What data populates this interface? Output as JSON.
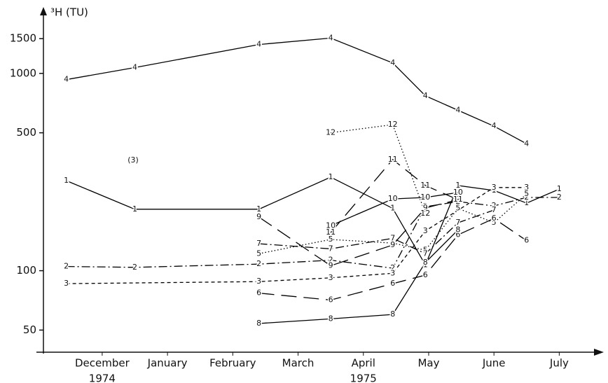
{
  "chart_data": {
    "type": "line",
    "y_label": "³H (TU)",
    "annotation": "(3)",
    "year_labels": [
      "1974",
      "1975"
    ],
    "log_scale": true,
    "xlim": [
      -0.9,
      7.5
    ],
    "xticks": [
      {
        "value": 0,
        "label": "December"
      },
      {
        "value": 1,
        "label": "January"
      },
      {
        "value": 2,
        "label": "February"
      },
      {
        "value": 3,
        "label": "March"
      },
      {
        "value": 4,
        "label": "April"
      },
      {
        "value": 5,
        "label": "May"
      },
      {
        "value": 6,
        "label": "June"
      },
      {
        "value": 7,
        "label": "July"
      }
    ],
    "ylim": [
      38,
      2000
    ],
    "yticks": [
      50,
      100,
      500,
      1000,
      1500
    ],
    "series": [
      {
        "name": "1",
        "color": "#000000",
        "dash": "solid",
        "x": [
          -0.55,
          0.5,
          2.4,
          3.5,
          4.45,
          4.95,
          5.45,
          6.0,
          6.5,
          7.0
        ],
        "values": [
          286,
          205,
          205,
          298,
          207,
          107,
          270,
          255,
          220,
          259
        ]
      },
      {
        "name": "2",
        "color": "#000000",
        "dash": "dashdot",
        "x": [
          -0.55,
          0.5,
          2.4,
          3.5,
          4.45,
          4.95,
          5.45,
          6.0,
          6.5,
          7.0
        ],
        "values": [
          105,
          104,
          108,
          113,
          103,
          211,
          224,
          213,
          235,
          235
        ]
      },
      {
        "name": "3",
        "color": "#000000",
        "dash": "shortdash",
        "x": [
          -0.55,
          2.4,
          3.5,
          4.45,
          4.95,
          6.0,
          6.5
        ],
        "values": [
          86,
          88,
          92,
          97,
          159,
          264,
          264
        ]
      },
      {
        "name": "4",
        "color": "#000000",
        "dash": "solid",
        "x": [
          -0.55,
          0.5,
          2.4,
          3.5,
          4.45,
          4.95,
          5.45,
          6.0,
          6.5
        ],
        "values": [
          930,
          1070,
          1400,
          1510,
          1130,
          770,
          650,
          540,
          440
        ]
      },
      {
        "name": "5",
        "color": "#000000",
        "dash": "dotted",
        "x": [
          2.4,
          3.5,
          4.45,
          4.95,
          5.45,
          6.0,
          6.5
        ],
        "values": [
          122,
          144,
          138,
          127,
          207,
          175,
          245
        ]
      },
      {
        "name": "6",
        "color": "#000000",
        "dash": "longdash",
        "x": [
          2.4,
          3.5,
          4.45,
          4.95,
          5.45,
          6.0,
          6.5
        ],
        "values": [
          77,
          71,
          86,
          95,
          152,
          184,
          142
        ]
      },
      {
        "name": "7",
        "color": "#000000",
        "dash": "dashdot",
        "x": [
          2.4,
          3.5,
          4.45,
          4.95,
          5.45,
          6.0
        ],
        "values": [
          137,
          129,
          146,
          122,
          175,
          203
        ]
      },
      {
        "name": "8",
        "color": "#000000",
        "dash": "solid",
        "x": [
          2.4,
          3.5,
          4.45,
          4.95,
          5.45
        ],
        "values": [
          54,
          57,
          60,
          110,
          161
        ]
      },
      {
        "name": "9",
        "color": "#000000",
        "dash": "longdash",
        "x": [
          2.4,
          3.5,
          4.45,
          4.95,
          5.45
        ],
        "values": [
          187,
          106,
          135,
          208,
          229
        ]
      },
      {
        "name": "10",
        "color": "#000000",
        "dash": "solid",
        "x": [
          3.5,
          4.45,
          4.95,
          5.45
        ],
        "values": [
          169,
          231,
          235,
          249
        ]
      },
      {
        "name": "11",
        "color": "#000000",
        "dash": "longdash",
        "x": [
          3.5,
          4.45,
          4.95,
          5.45
        ],
        "values": [
          156,
          366,
          270,
          229
        ]
      },
      {
        "name": "12",
        "color": "#000000",
        "dash": "dotted",
        "x": [
          3.5,
          4.45,
          4.95
        ],
        "values": [
          500,
          550,
          195
        ]
      }
    ]
  }
}
